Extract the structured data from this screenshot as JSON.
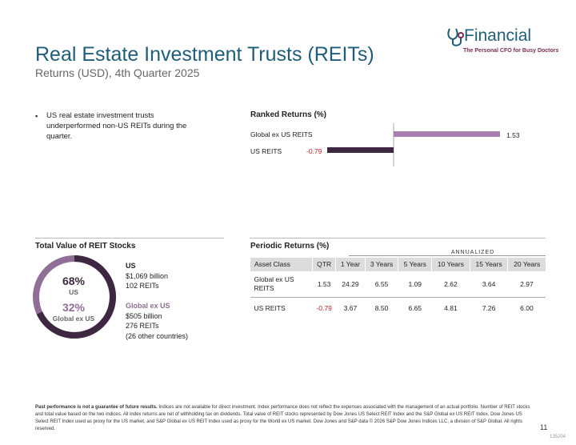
{
  "header": {
    "title": "Real Estate Investment Trusts (REITs)",
    "subtitle": "Returns (USD), 4th Quarter 2025",
    "logo_word": "Financial",
    "logo_tagline": "The Personal CFO for Busy Doctors",
    "brand_color": "#1f5d78",
    "logo_accent": "#7a2d4e"
  },
  "bullet": {
    "text": "US real estate investment trusts underperformed non-US REITs during the quarter."
  },
  "ranked": {
    "heading": "Ranked Returns (%)",
    "chart_data": {
      "type": "bar",
      "orientation": "horizontal",
      "categories": [
        "Global ex US REITS",
        "US REITS"
      ],
      "values": [
        1.53,
        -0.79
      ],
      "value_labels": [
        "1.53",
        "-0.79"
      ],
      "colors": [
        "#a77fb1",
        "#3d2741"
      ],
      "xlim": [
        -0.79,
        1.53
      ]
    }
  },
  "total_value": {
    "heading": "Total Value of REIT Stocks",
    "us": {
      "pct": "68%",
      "pct_value": 68,
      "label": "US",
      "name": "US",
      "value": "$1,069 billion",
      "count": "102 REITs",
      "color": "#3d2741"
    },
    "ex": {
      "pct": "32%",
      "pct_value": 32,
      "label": "Global ex US",
      "name": "Global ex US",
      "value": "$505 billion",
      "count": "276 REITs",
      "note": "(26 other countries)",
      "color": "#8f6f95"
    }
  },
  "periodic": {
    "heading": "Periodic Returns (%)",
    "annualized": "ANNUALIZED",
    "columns": [
      "Asset Class",
      "QTR",
      "1 Year",
      "3 Years",
      "5 Years",
      "10 Years",
      "15 Years",
      "20 Years"
    ],
    "rows": [
      {
        "asset": "Global ex US REITS",
        "qtr": "1.53",
        "y1": "24.29",
        "y3": "6.55",
        "y5": "1.09",
        "y10": "2.62",
        "y15": "3.64",
        "y20": "2.97"
      },
      {
        "asset": "US REITS",
        "qtr": "-0.79",
        "y1": "3.67",
        "y3": "8.50",
        "y5": "6.65",
        "y10": "4.81",
        "y15": "7.26",
        "y20": "6.00"
      }
    ]
  },
  "footer": {
    "bold": "Past performance is not a guarantee of future results.",
    "text": " Indices are not available for direct investment. Index performance does not reflect the expenses associated with the management of an actual portfolio. Number of REIT stocks and total value based on the two indices. All index returns are net of withholding tax on dividends. Total value of REIT stocks represented by Dow Jones US Select REIT Index and the S&P Global ex US REIT Index. Dow Jones US Select REIT Index used as proxy for the US market, and S&P Global ex US REIT Index used as proxy for the World ex US market. Dow Jones and S&P data © 2026 S&P Dow Jones Indices LLC, a division of S&P Global. All rights reserved.",
    "page": "11",
    "code": "135204"
  }
}
